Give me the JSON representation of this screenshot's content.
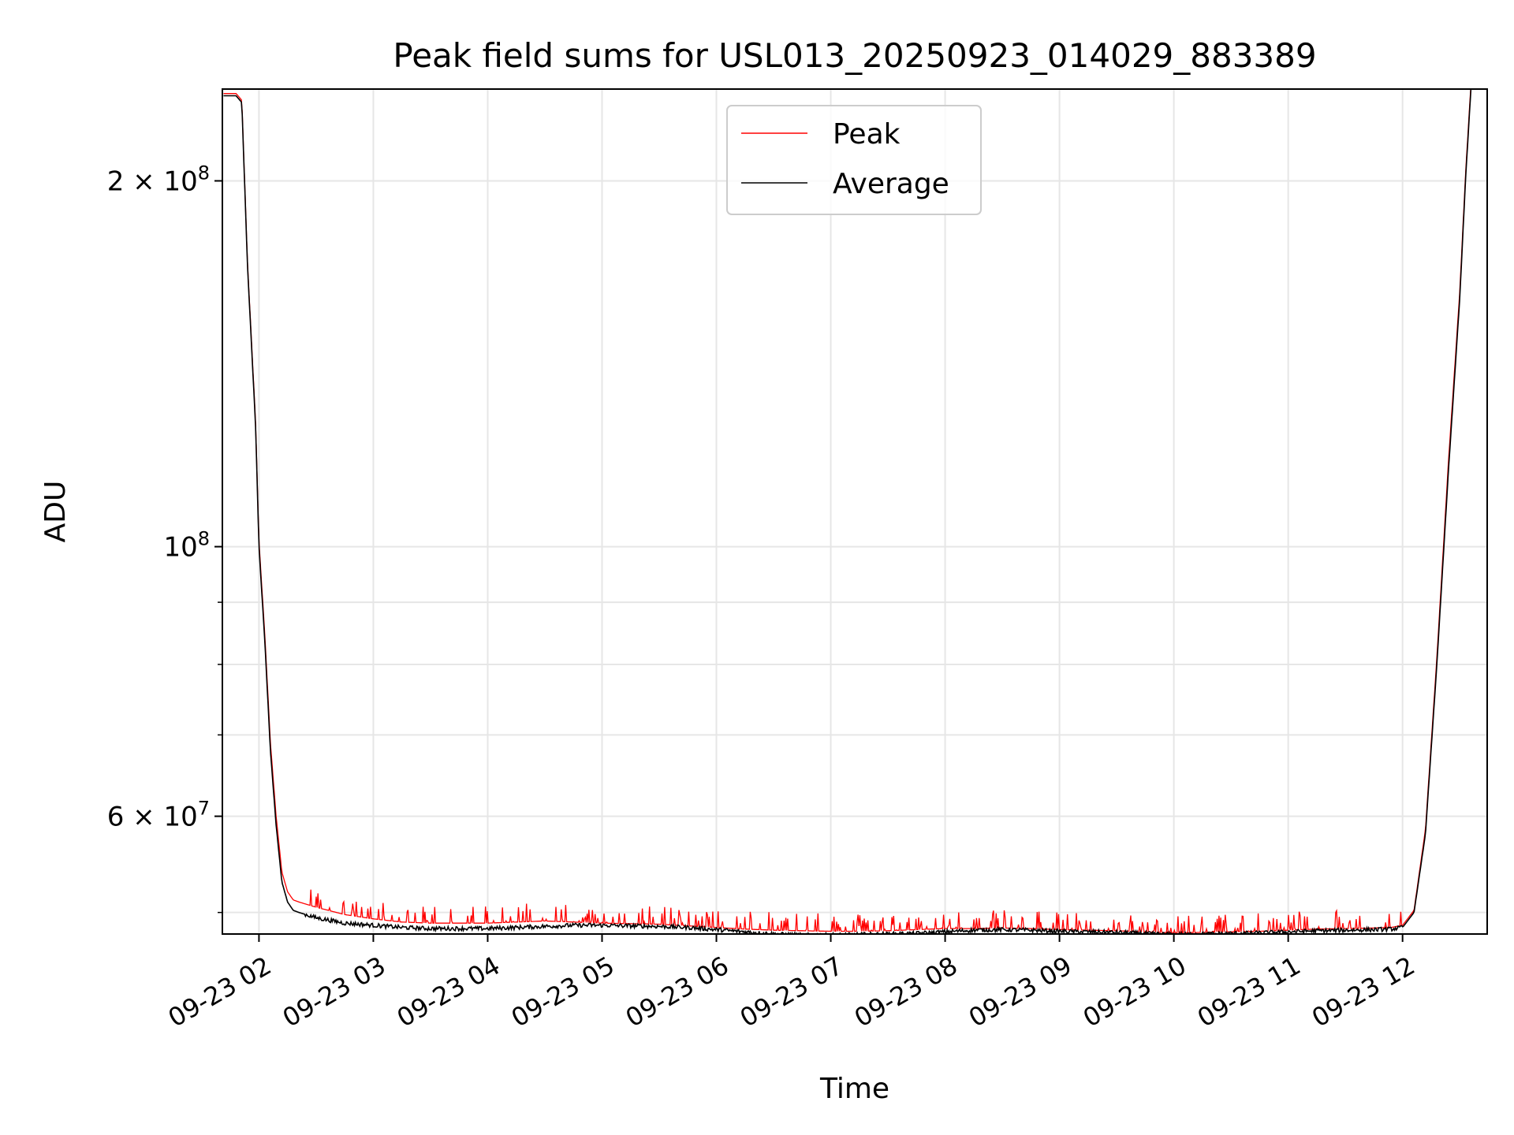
{
  "chart_data": {
    "type": "line",
    "title": "Peak field sums for USL013_20250923_014029_883389",
    "xlabel": "Time",
    "ylabel": "ADU",
    "yscale": "log",
    "xlim": [
      1.68,
      12.74
    ],
    "ylim": [
      48000000,
      238000000
    ],
    "x_ticks": [
      {
        "value": 2,
        "label": "09-23 02"
      },
      {
        "value": 3,
        "label": "09-23 03"
      },
      {
        "value": 4,
        "label": "09-23 04"
      },
      {
        "value": 5,
        "label": "09-23 05"
      },
      {
        "value": 6,
        "label": "09-23 06"
      },
      {
        "value": 7,
        "label": "09-23 07"
      },
      {
        "value": 8,
        "label": "09-23 08"
      },
      {
        "value": 9,
        "label": "09-23 09"
      },
      {
        "value": 10,
        "label": "09-23 10"
      },
      {
        "value": 11,
        "label": "09-23 11"
      },
      {
        "value": 12,
        "label": "09-23 12"
      }
    ],
    "y_major_ticks": [
      {
        "value": 200000000,
        "mantissa": "2",
        "exponent": "8"
      },
      {
        "value": 100000000,
        "mantissa": "",
        "exponent": "8"
      },
      {
        "value": 60000000,
        "mantissa": "6",
        "exponent": "7"
      }
    ],
    "y_minor_ticks": [
      50000000,
      70000000,
      80000000,
      90000000
    ],
    "grid": true,
    "legend": {
      "position": "top-center",
      "entries": [
        {
          "label": "Peak",
          "color": "#ff0000"
        },
        {
          "label": "Average",
          "color": "#000000"
        }
      ]
    },
    "series": [
      {
        "name": "Average",
        "color": "#000000",
        "x": [
          1.69,
          1.8,
          1.85,
          1.9,
          1.97,
          2.0,
          2.05,
          2.1,
          2.15,
          2.2,
          2.25,
          2.3,
          2.35,
          2.5,
          2.75,
          3.0,
          3.25,
          3.5,
          3.75,
          4.0,
          4.25,
          4.5,
          4.75,
          5.0,
          5.25,
          5.5,
          5.75,
          6.0,
          6.25,
          6.5,
          6.75,
          7.0,
          7.25,
          7.5,
          7.75,
          8.0,
          8.25,
          8.5,
          8.75,
          9.0,
          9.25,
          9.5,
          9.75,
          10.0,
          10.25,
          10.5,
          10.75,
          11.0,
          11.25,
          11.5,
          11.75,
          11.9,
          12.0,
          12.1,
          12.2,
          12.3,
          12.4,
          12.5,
          12.55,
          12.6
        ],
        "values": [
          235000000,
          235000000,
          232000000,
          170000000,
          126000000,
          100000000,
          84000000,
          68000000,
          59000000,
          53000000,
          51000000,
          50200000,
          50000000,
          49500000,
          49000000,
          48800000,
          48600000,
          48500000,
          48500000,
          48500000,
          48600000,
          48700000,
          48800000,
          48800000,
          48750000,
          48700000,
          48600000,
          48400000,
          48200000,
          48000000,
          47900000,
          47900000,
          47950000,
          48000000,
          48050000,
          48200000,
          48350000,
          48400000,
          48350000,
          48250000,
          48200000,
          48150000,
          48050000,
          47950000,
          48000000,
          48050000,
          48100000,
          48200000,
          48300000,
          48350000,
          48400000,
          48450000,
          48600000,
          50000000,
          58000000,
          80000000,
          115000000,
          160000000,
          200000000,
          240000000
        ]
      },
      {
        "name": "Peak",
        "color": "#ff0000",
        "x": [
          1.69,
          1.8,
          1.85,
          1.9,
          1.97,
          2.0,
          2.05,
          2.1,
          2.15,
          2.2,
          2.25,
          2.3,
          2.35,
          2.5,
          2.75,
          3.0,
          3.25,
          3.5,
          3.75,
          4.0,
          4.25,
          4.5,
          4.75,
          5.0,
          5.25,
          5.5,
          5.75,
          6.0,
          6.25,
          6.5,
          6.75,
          7.0,
          7.25,
          7.5,
          7.75,
          8.0,
          8.25,
          8.5,
          8.75,
          9.0,
          9.25,
          9.5,
          9.75,
          10.0,
          10.25,
          10.5,
          10.75,
          11.0,
          11.25,
          11.5,
          11.75,
          11.9,
          12.0,
          12.1,
          12.2,
          12.3,
          12.4,
          12.5,
          12.55,
          12.6
        ],
        "values": [
          236000000,
          236000000,
          233000000,
          171000000,
          127000000,
          101000000,
          85000000,
          69000000,
          60000000,
          54000000,
          52000000,
          51200000,
          51000000,
          50500000,
          49800000,
          49400000,
          49100000,
          49000000,
          49000000,
          49000000,
          49100000,
          49200000,
          49100000,
          49000000,
          48950000,
          48900000,
          48750000,
          48600000,
          48450000,
          48350000,
          48300000,
          48250000,
          48250000,
          48300000,
          48400000,
          48500000,
          48500000,
          48550000,
          48500000,
          48400000,
          48350000,
          48300000,
          48200000,
          48100000,
          48150000,
          48200000,
          48250000,
          48350000,
          48450000,
          48500000,
          48550000,
          48600000,
          48800000,
          50200000,
          58500000,
          81000000,
          117000000,
          162000000,
          202000000,
          242000000
        ]
      }
    ]
  }
}
